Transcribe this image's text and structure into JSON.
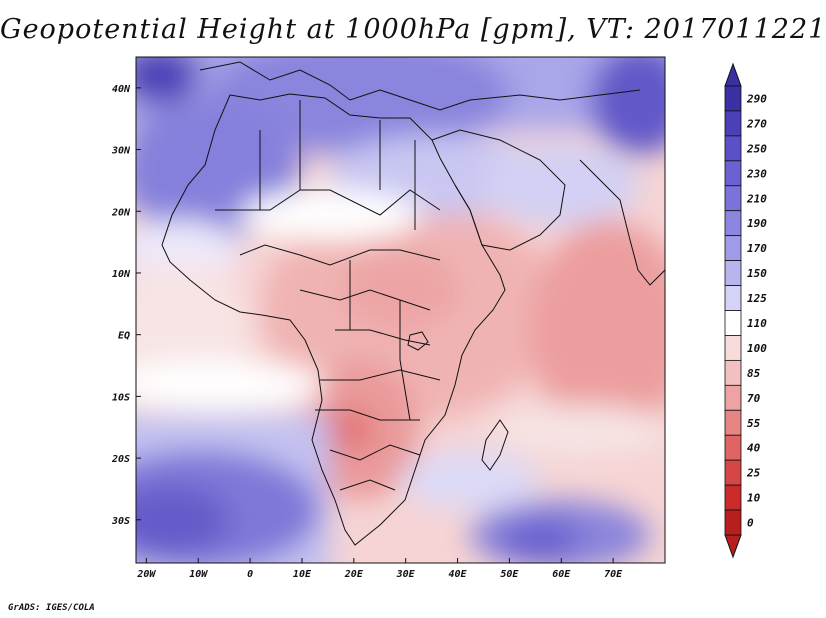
{
  "title": "Geopotential Height at 1000hPa [gpm], VT: 2017011221",
  "credit": "GrADS: IGES/COLA",
  "chart_data": {
    "type": "heatmap",
    "title": "Geopotential Height at 1000hPa [gpm], VT: 2017011221",
    "variable": "Geopotential Height",
    "level": "1000hPa",
    "units": "gpm",
    "valid_time": "2017011221",
    "lon_range": [
      -22,
      80
    ],
    "lat_range": [
      -37,
      45
    ],
    "x_tick_values": [
      -20,
      -10,
      0,
      10,
      20,
      30,
      40,
      50,
      60,
      70
    ],
    "x_tick_labels": [
      "20W",
      "10W",
      "0",
      "10E",
      "20E",
      "30E",
      "40E",
      "50E",
      "60E",
      "70E"
    ],
    "y_tick_values": [
      40,
      30,
      20,
      10,
      0,
      -10,
      -20,
      -30
    ],
    "y_tick_labels": [
      "40N",
      "30N",
      "20N",
      "10N",
      "EQ",
      "10S",
      "20S",
      "30S"
    ],
    "colorbar_levels": [
      "290",
      "270",
      "250",
      "230",
      "210",
      "190",
      "170",
      "150",
      "125",
      "110",
      "100",
      "85",
      "70",
      "55",
      "40",
      "25",
      "10",
      "0"
    ],
    "colorbar_colors": [
      "#3a2fa3",
      "#4b40b8",
      "#5a50c8",
      "#6a61d2",
      "#7b73da",
      "#8c86e1",
      "#a09be8",
      "#b7b4ee",
      "#d4d3f5",
      "#ffffff",
      "#f8dcdc",
      "#f2c0c0",
      "#eda3a3",
      "#e78484",
      "#df6464",
      "#d74646",
      "#cb2a2a",
      "#b71e1e"
    ]
  }
}
